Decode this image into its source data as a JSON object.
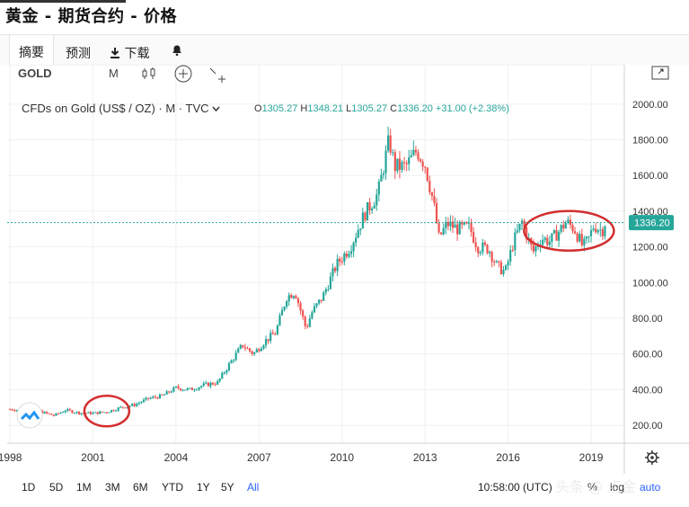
{
  "page_title": "黄金 - 期货合约 - 价格",
  "tabs": [
    {
      "label": "摘要"
    },
    {
      "label": "预测"
    },
    {
      "label": "下载"
    },
    {
      "label": ""
    }
  ],
  "toolbar": {
    "symbol": "GOLD",
    "interval": "M",
    "icons": [
      "candles-icon",
      "add-compare-icon",
      "indicators-icon",
      "fullscreen-icon"
    ]
  },
  "legend": {
    "instrument": "CFDs on Gold (US$ / OZ) · M · TVC",
    "ohlc": [
      {
        "key": "O",
        "value": "1305.27"
      },
      {
        "key": "H",
        "value": "1348.21"
      },
      {
        "key": "L",
        "value": "1305.27"
      },
      {
        "key": "C",
        "value": "1336.20"
      },
      {
        "key": "",
        "value": "+31.00 (+2.38%)"
      }
    ]
  },
  "colors": {
    "up": "#26a69a",
    "down": "#ef5350",
    "accent": "#2962ff",
    "annotation": "#d32f2f",
    "price_line": "#26a69a"
  },
  "chart_data": {
    "type": "candlestick",
    "title": "",
    "xlabel": "",
    "ylabel": "",
    "x_ticks": [
      "1998",
      "2001",
      "2004",
      "2007",
      "2010",
      "2013",
      "2016",
      "2019"
    ],
    "y_ticks": [
      "200.00",
      "400.00",
      "600.00",
      "800.00",
      "1000.00",
      "1200.00",
      "1400.00",
      "1600.00",
      "1800.00",
      "2000.00"
    ],
    "ylim": [
      100,
      2120
    ],
    "xlim": [
      1997.9,
      2020.2
    ],
    "last_price": 1336.2,
    "last_price_label": "1336.20",
    "series": [
      {
        "values": [
          [
            1998.0,
            290
          ],
          [
            1999.0,
            280
          ],
          [
            1999.6,
            255
          ],
          [
            2000.0,
            285
          ],
          [
            2000.5,
            270
          ],
          [
            2001.0,
            268
          ],
          [
            2001.5,
            275
          ],
          [
            2002.0,
            300
          ],
          [
            2002.5,
            315
          ],
          [
            2003.0,
            350
          ],
          [
            2003.5,
            365
          ],
          [
            2004.0,
            410
          ],
          [
            2004.5,
            400
          ],
          [
            2005.0,
            425
          ],
          [
            2005.5,
            440
          ],
          [
            2006.0,
            560
          ],
          [
            2006.4,
            650
          ],
          [
            2006.8,
            600
          ],
          [
            2007.2,
            670
          ],
          [
            2007.6,
            720
          ],
          [
            2008.0,
            920
          ],
          [
            2008.3,
            950
          ],
          [
            2008.7,
            740
          ],
          [
            2008.9,
            830
          ],
          [
            2009.3,
            920
          ],
          [
            2009.8,
            1100
          ],
          [
            2010.3,
            1200
          ],
          [
            2010.8,
            1380
          ],
          [
            2011.3,
            1500
          ],
          [
            2011.7,
            1800
          ],
          [
            2011.9,
            1650
          ],
          [
            2012.3,
            1650
          ],
          [
            2012.7,
            1740
          ],
          [
            2013.0,
            1660
          ],
          [
            2013.3,
            1450
          ],
          [
            2013.5,
            1250
          ],
          [
            2013.8,
            1330
          ],
          [
            2014.2,
            1300
          ],
          [
            2014.6,
            1310
          ],
          [
            2014.9,
            1200
          ],
          [
            2015.3,
            1190
          ],
          [
            2015.6,
            1090
          ],
          [
            2015.9,
            1060
          ],
          [
            2016.2,
            1230
          ],
          [
            2016.5,
            1340
          ],
          [
            2016.9,
            1170
          ],
          [
            2017.2,
            1250
          ],
          [
            2017.5,
            1230
          ],
          [
            2017.8,
            1280
          ],
          [
            2018.1,
            1340
          ],
          [
            2018.4,
            1300
          ],
          [
            2018.7,
            1200
          ],
          [
            2018.9,
            1240
          ],
          [
            2019.1,
            1320
          ],
          [
            2019.4,
            1290
          ],
          [
            2019.5,
            1336
          ]
        ]
      }
    ],
    "annotations": [
      {
        "type": "circle",
        "x": 2001.5,
        "y": 280
      },
      {
        "type": "circle",
        "x": 2018.2,
        "y": 1290
      }
    ]
  },
  "bottombar": {
    "ranges": [
      "1D",
      "5D",
      "1M",
      "3M",
      "6M",
      "YTD",
      "1Y",
      "5Y",
      "All"
    ],
    "active": "All",
    "time": "10:58:00 (UTC)",
    "percent": "%",
    "log": "log",
    "auto": "auto"
  },
  "watermark": "头条 @ 点金"
}
